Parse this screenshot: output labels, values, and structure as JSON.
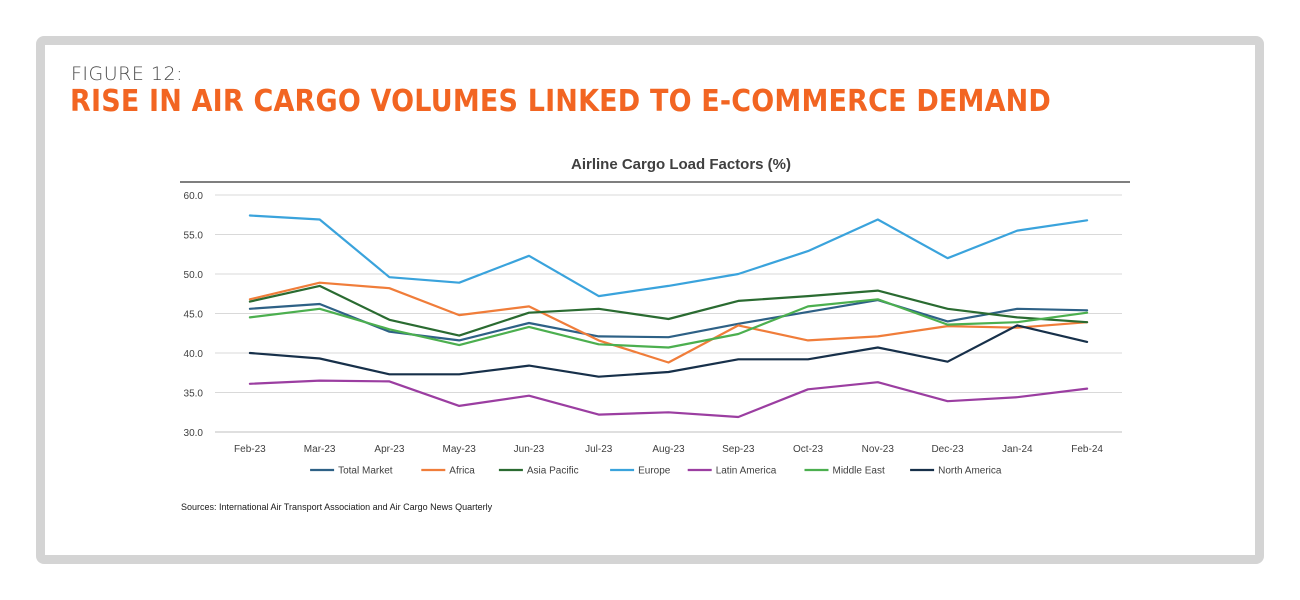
{
  "figure": {
    "label": "FIGURE 12:",
    "title": "RISE IN AIR CARGO VOLUMES LINKED TO E-COMMERCE DEMAND",
    "source": "Sources: International Air Transport Association and Air Cargo News Quarterly"
  },
  "colors": {
    "frame": "#d4d4d4",
    "title": "#f26522",
    "grid": "#d9d9d9"
  },
  "chart_data": {
    "type": "line",
    "title": "Airline Cargo Load Factors (%)",
    "xlabel": "",
    "ylabel": "",
    "ylim": [
      30,
      60
    ],
    "yticks": [
      "60.0",
      "55.0",
      "50.0",
      "45.0",
      "40.0",
      "35.0",
      "30.0"
    ],
    "grid": true,
    "legend_position": "bottom",
    "categories": [
      "Feb-23",
      "Mar-23",
      "Apr-23",
      "May-23",
      "Jun-23",
      "Jul-23",
      "Aug-23",
      "Sep-23",
      "Oct-23",
      "Nov-23",
      "Dec-23",
      "Jan-24",
      "Feb-24"
    ],
    "series": [
      {
        "name": "Total Market",
        "color": "#2e6186",
        "values": [
          45.6,
          46.2,
          42.7,
          41.6,
          43.8,
          42.1,
          42.0,
          43.7,
          45.2,
          46.7,
          44.0,
          45.6,
          45.4
        ]
      },
      {
        "name": "Africa",
        "color": "#f07d3a",
        "values": [
          46.8,
          48.9,
          48.2,
          44.8,
          45.9,
          41.6,
          38.8,
          43.5,
          41.6,
          42.1,
          43.4,
          43.2,
          43.9
        ]
      },
      {
        "name": "Asia Pacific",
        "color": "#2a6b31",
        "values": [
          46.5,
          48.5,
          44.2,
          42.2,
          45.1,
          45.6,
          44.3,
          46.6,
          47.2,
          47.9,
          45.6,
          44.5,
          43.9
        ]
      },
      {
        "name": "Europe",
        "color": "#3aa3dc",
        "values": [
          57.4,
          56.9,
          49.6,
          48.9,
          52.3,
          47.2,
          48.5,
          50.0,
          52.9,
          56.9,
          52.0,
          55.5,
          56.8
        ]
      },
      {
        "name": "Latin America",
        "color": "#9b3ea1",
        "values": [
          36.1,
          36.5,
          36.4,
          33.3,
          34.6,
          32.2,
          32.5,
          31.9,
          35.4,
          36.3,
          33.9,
          34.4,
          35.5
        ]
      },
      {
        "name": "Middle East",
        "color": "#4caf4f",
        "values": [
          44.5,
          45.6,
          43.0,
          41.0,
          43.3,
          41.1,
          40.7,
          42.4,
          45.9,
          46.8,
          43.6,
          43.9,
          45.1
        ]
      },
      {
        "name": "North America",
        "color": "#17304a",
        "values": [
          40.0,
          39.3,
          37.3,
          37.3,
          38.4,
          37.0,
          37.6,
          39.2,
          39.2,
          40.7,
          38.9,
          43.5,
          41.4
        ]
      }
    ]
  }
}
